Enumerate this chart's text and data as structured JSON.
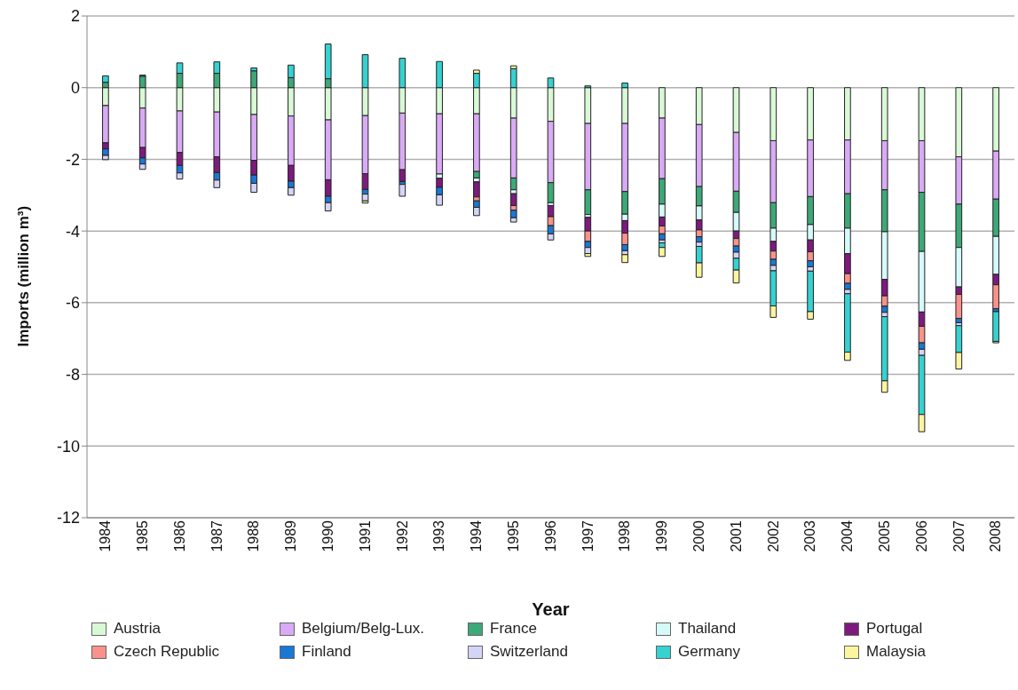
{
  "chart_data": {
    "type": "bar",
    "stacked": true,
    "xlabel": "Year",
    "ylabel": "Imports (million m³)",
    "categories": [
      "1984",
      "1985",
      "1986",
      "1987",
      "1988",
      "1989",
      "1990",
      "1991",
      "1992",
      "1993",
      "1994",
      "1995",
      "1996",
      "1997",
      "1998",
      "1999",
      "2000",
      "2001",
      "2002",
      "2003",
      "2004",
      "2005",
      "2006",
      "2007",
      "2008"
    ],
    "ylim": [
      -12,
      2
    ],
    "yticks": [
      2,
      0,
      -2,
      -4,
      -6,
      -8,
      -10,
      -12
    ],
    "grid": "y",
    "legend": "bottom",
    "series": [
      {
        "name": "Austria",
        "color": "#d9f9d6",
        "values": [
          -0.5,
          -0.57,
          -0.65,
          -0.68,
          -0.75,
          -0.79,
          -0.9,
          -0.78,
          -0.71,
          -0.73,
          -0.73,
          -0.85,
          -0.94,
          -1.0,
          -1.0,
          -0.85,
          -1.03,
          -1.25,
          -1.48,
          -1.46,
          -1.46,
          -1.48,
          -1.48,
          -1.93,
          -1.77
        ]
      },
      {
        "name": "Belgium/Belg-Lux.",
        "color": "#d9aaf5",
        "values": [
          -1.04,
          -1.1,
          -1.16,
          -1.25,
          -1.28,
          -1.38,
          -1.67,
          -1.62,
          -1.58,
          -1.68,
          -1.61,
          -1.67,
          -1.71,
          -1.85,
          -1.9,
          -1.69,
          -1.73,
          -1.64,
          -1.73,
          -1.58,
          -1.5,
          -1.37,
          -1.44,
          -1.32,
          -1.34
        ]
      },
      {
        "name": "France",
        "color": "#3da878",
        "values": [
          0.15,
          0.32,
          0.4,
          0.4,
          0.47,
          0.28,
          0.25,
          null,
          null,
          null,
          -0.18,
          -0.33,
          -0.56,
          -0.69,
          -0.63,
          -0.71,
          -0.54,
          -0.59,
          -0.71,
          -0.78,
          -0.96,
          -1.17,
          -1.65,
          -1.21,
          -1.04
        ]
      },
      {
        "name": "Thailand",
        "color": "#d5fafa",
        "values": [
          null,
          null,
          null,
          null,
          null,
          null,
          null,
          null,
          null,
          -0.12,
          -0.11,
          -0.11,
          -0.08,
          -0.08,
          -0.18,
          -0.36,
          -0.39,
          -0.52,
          -0.37,
          -0.43,
          -0.71,
          -1.33,
          -1.69,
          -1.1,
          -1.06
        ]
      },
      {
        "name": "Portugal",
        "color": "#7d1a7d",
        "values": [
          -0.17,
          -0.29,
          -0.36,
          -0.44,
          -0.41,
          -0.44,
          -0.46,
          -0.44,
          -0.33,
          -0.25,
          -0.42,
          -0.33,
          -0.31,
          -0.38,
          -0.35,
          -0.25,
          -0.28,
          -0.21,
          -0.27,
          -0.33,
          -0.56,
          -0.46,
          -0.4,
          -0.21,
          -0.29
        ]
      },
      {
        "name": "Czech Republic",
        "color": "#f8928b",
        "values": [
          null,
          null,
          null,
          null,
          null,
          null,
          null,
          null,
          null,
          null,
          -0.11,
          -0.13,
          -0.25,
          -0.29,
          -0.32,
          -0.22,
          -0.19,
          -0.21,
          -0.23,
          -0.25,
          -0.27,
          -0.29,
          -0.46,
          -0.67,
          -0.67
        ]
      },
      {
        "name": "Finland",
        "color": "#1a78d4",
        "values": [
          -0.18,
          -0.17,
          -0.21,
          -0.21,
          -0.23,
          -0.18,
          -0.18,
          -0.13,
          -0.08,
          -0.21,
          -0.18,
          -0.21,
          -0.23,
          -0.17,
          -0.17,
          -0.17,
          -0.15,
          -0.17,
          -0.17,
          -0.17,
          -0.17,
          -0.17,
          -0.18,
          -0.12,
          -0.08
        ]
      },
      {
        "name": "Switzerland",
        "color": "#d4d4f7",
        "values": [
          -0.12,
          -0.15,
          -0.17,
          -0.21,
          -0.25,
          -0.21,
          -0.23,
          -0.19,
          -0.33,
          -0.29,
          -0.23,
          -0.12,
          -0.17,
          -0.17,
          -0.11,
          -0.08,
          -0.12,
          -0.17,
          -0.15,
          -0.12,
          -0.12,
          -0.12,
          -0.17,
          -0.08,
          null
        ]
      },
      {
        "name": "Germany",
        "color": "#36d1d1",
        "values": [
          0.18,
          0.03,
          0.29,
          0.32,
          0.08,
          0.35,
          0.97,
          0.92,
          0.82,
          0.73,
          0.4,
          0.53,
          0.27,
          0.05,
          0.13,
          -0.13,
          -0.46,
          -0.33,
          -0.98,
          -1.13,
          -1.63,
          -1.79,
          -1.65,
          -0.75,
          -0.83
        ]
      },
      {
        "name": "Malaysia",
        "color": "#fbf5a0",
        "values": [
          null,
          null,
          null,
          null,
          null,
          null,
          null,
          -0.06,
          null,
          null,
          0.09,
          0.08,
          null,
          -0.08,
          -0.22,
          -0.25,
          -0.4,
          -0.36,
          -0.32,
          -0.21,
          -0.23,
          -0.32,
          -0.48,
          -0.46,
          -0.04
        ]
      }
    ]
  }
}
